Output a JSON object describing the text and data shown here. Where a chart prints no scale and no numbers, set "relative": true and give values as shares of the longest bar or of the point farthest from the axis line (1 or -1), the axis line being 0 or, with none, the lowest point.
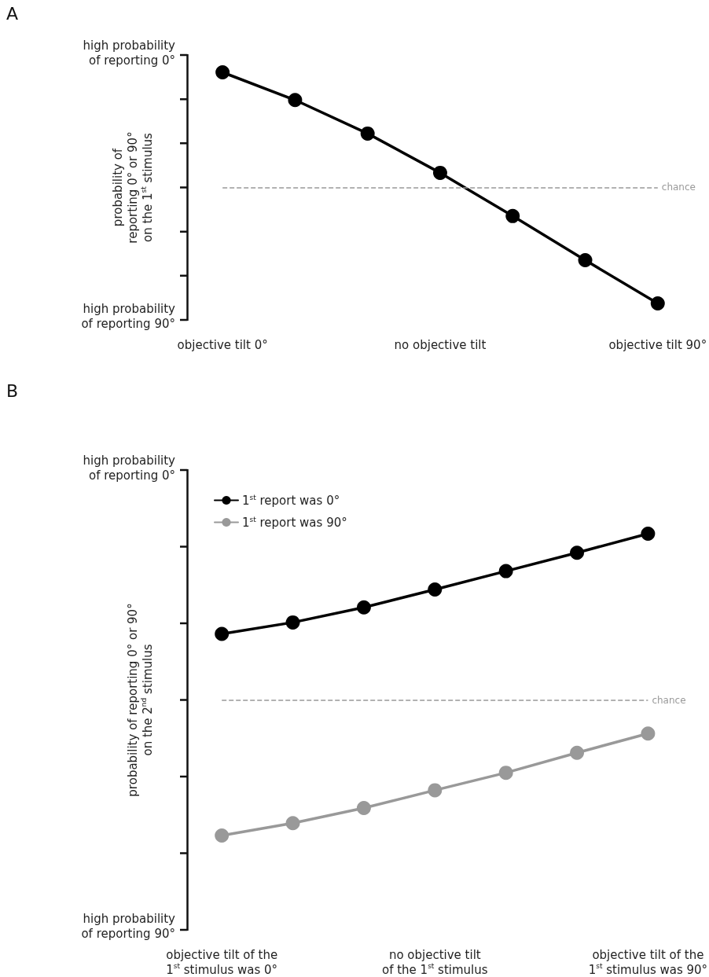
{
  "chart_data": [
    {
      "type": "line",
      "ylabel": "probability of\nreporting 0° or 90°\non the 1$^{st}$ stimulus",
      "relative": true,
      "categories": [
        "objective tilt 0°",
        null,
        null,
        "no objective tilt",
        null,
        null,
        "objective tilt 90°"
      ],
      "series": [
        {
          "color": "#000000",
          "values": [
            1,
            0.88,
            0.735,
            0.565,
            0.378,
            0.187,
            0
          ]
        }
      ],
      "annotations": [
        "high probability\nof reporting 0°",
        "high probability\nof reporting 90°",
        "A"
      ],
      "ref_lines": [
        {
          "axis": "y",
          "value": 0.502,
          "label": "chance",
          "color": "#999999",
          "line_style": "dashed"
        }
      ],
      "marker": "circle",
      "line_style": "solid"
    },
    {
      "type": "line",
      "ylabel": "probability of reporting 0° or 90°\non the 2$^{nd}$ stimulus",
      "relative": true,
      "categories": [
        "objective tilt of the\n1$^{st}$ stimulus was 0°",
        null,
        null,
        "no objective tilt\nof the 1$^{st}$ stimulus",
        null,
        null,
        "objective tilt of the\n1$^{st}$ stimulus was 90°"
      ],
      "series": [
        {
          "name": "1$^{st}$ report was 0°",
          "color": "#000000",
          "values": [
            0.668,
            0.706,
            0.756,
            0.815,
            0.876,
            0.937,
            1
          ]
        },
        {
          "name": "1$^{st}$ report was 90°",
          "color": "#999999",
          "values": [
            0,
            0.041,
            0.091,
            0.15,
            0.208,
            0.274,
            0.338
          ]
        }
      ],
      "annotations": [
        "high probability\nof reporting 0°",
        "high probability\nof reporting 90°",
        "B"
      ],
      "ref_lines": [
        {
          "axis": "y",
          "value": 0.449,
          "label": "chance",
          "color": "#999999",
          "line_style": "dashed"
        }
      ],
      "legend": "top left",
      "marker": "circle",
      "line_style": "solid"
    }
  ]
}
